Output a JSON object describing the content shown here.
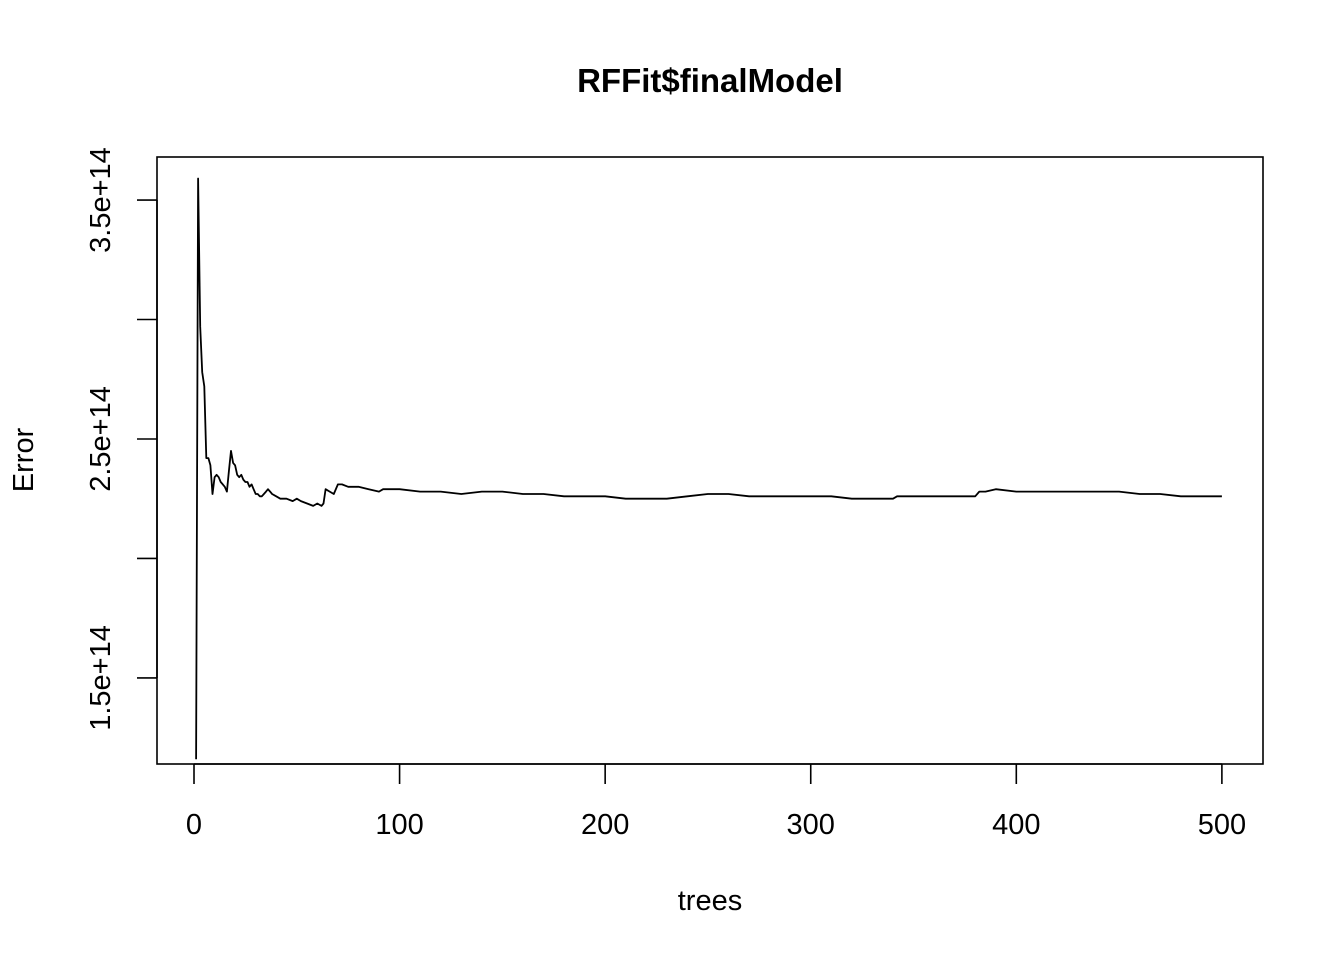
{
  "chart_data": {
    "type": "line",
    "title": "RFFit$finalModel",
    "xlabel": "trees",
    "ylabel": "Error",
    "xlim": [
      -18,
      520
    ],
    "ylim": [
      114000000000000.0,
      368000000000000.0
    ],
    "x_ticks": [
      0,
      100,
      200,
      300,
      400,
      500
    ],
    "x_tick_labels": [
      "0",
      "100",
      "200",
      "300",
      "400",
      "500"
    ],
    "y_ticks": [
      150000000000000.0,
      200000000000000.0,
      250000000000000.0,
      300000000000000.0,
      350000000000000.0
    ],
    "y_tick_labels": [
      "1.5e+14",
      "",
      "2.5e+14",
      "",
      "3.5e+14"
    ],
    "grid": false,
    "legend": "none",
    "series": [
      {
        "color": "#000000",
        "x": [
          1,
          2,
          3,
          4,
          5,
          6,
          7,
          8,
          9,
          10,
          11,
          12,
          13,
          14,
          15,
          16,
          17,
          18,
          19,
          20,
          21,
          22,
          23,
          24,
          25,
          26,
          27,
          28,
          29,
          30,
          31,
          32,
          33,
          34,
          35,
          36,
          37,
          38,
          40,
          42,
          45,
          48,
          50,
          52,
          55,
          58,
          60,
          62,
          63,
          64,
          66,
          68,
          70,
          72,
          75,
          80,
          85,
          90,
          92,
          95,
          100,
          110,
          120,
          130,
          140,
          150,
          160,
          170,
          180,
          190,
          200,
          210,
          220,
          230,
          240,
          250,
          260,
          270,
          280,
          290,
          300,
          310,
          320,
          330,
          340,
          342,
          350,
          360,
          370,
          380,
          382,
          385,
          390,
          400,
          410,
          420,
          430,
          440,
          450,
          460,
          470,
          480,
          490,
          500
        ],
        "y": [
          116000000000000.0,
          359000000000000.0,
          297000000000000.0,
          278000000000000.0,
          272000000000000.0,
          242000000000000.0,
          242000000000000.0,
          239000000000000.0,
          227000000000000.0,
          234000000000000.0,
          235000000000000.0,
          234000000000000.0,
          232000000000000.0,
          231000000000000.0,
          230000000000000.0,
          228000000000000.0,
          237000000000000.0,
          245000000000000.0,
          240000000000000.0,
          239000000000000.0,
          235000000000000.0,
          234000000000000.0,
          235000000000000.0,
          233000000000000.0,
          232000000000000.0,
          232000000000000.0,
          230000000000000.0,
          231000000000000.0,
          229000000000000.0,
          227000000000000.0,
          227000000000000.0,
          226000000000000.0,
          226000000000000.0,
          227000000000000.0,
          228000000000000.0,
          229000000000000.0,
          228000000000000.0,
          227000000000000.0,
          226000000000000.0,
          225000000000000.0,
          225000000000000.0,
          224000000000000.0,
          225000000000000.0,
          224000000000000.0,
          223000000000000.0,
          222000000000000.0,
          223000000000000.0,
          222000000000000.0,
          223000000000000.0,
          229000000000000.0,
          228000000000000.0,
          227000000000000.0,
          231000000000000.0,
          231000000000000.0,
          230000000000000.0,
          230000000000000.0,
          229000000000000.0,
          228000000000000.0,
          229000000000000.0,
          229000000000000.0,
          229000000000000.0,
          228000000000000.0,
          228000000000000.0,
          227000000000000.0,
          228000000000000.0,
          228000000000000.0,
          227000000000000.0,
          227000000000000.0,
          226000000000000.0,
          226000000000000.0,
          226000000000000.0,
          225000000000000.0,
          225000000000000.0,
          225000000000000.0,
          226000000000000.0,
          227000000000000.0,
          227000000000000.0,
          226000000000000.0,
          226000000000000.0,
          226000000000000.0,
          226000000000000.0,
          226000000000000.0,
          225000000000000.0,
          225000000000000.0,
          225000000000000.0,
          226000000000000.0,
          226000000000000.0,
          226000000000000.0,
          226000000000000.0,
          226000000000000.0,
          228000000000000.0,
          228000000000000.0,
          229000000000000.0,
          228000000000000.0,
          228000000000000.0,
          228000000000000.0,
          228000000000000.0,
          228000000000000.0,
          228000000000000.0,
          227000000000000.0,
          227000000000000.0,
          226000000000000.0,
          226000000000000.0,
          226000000000000.0
        ]
      }
    ]
  }
}
